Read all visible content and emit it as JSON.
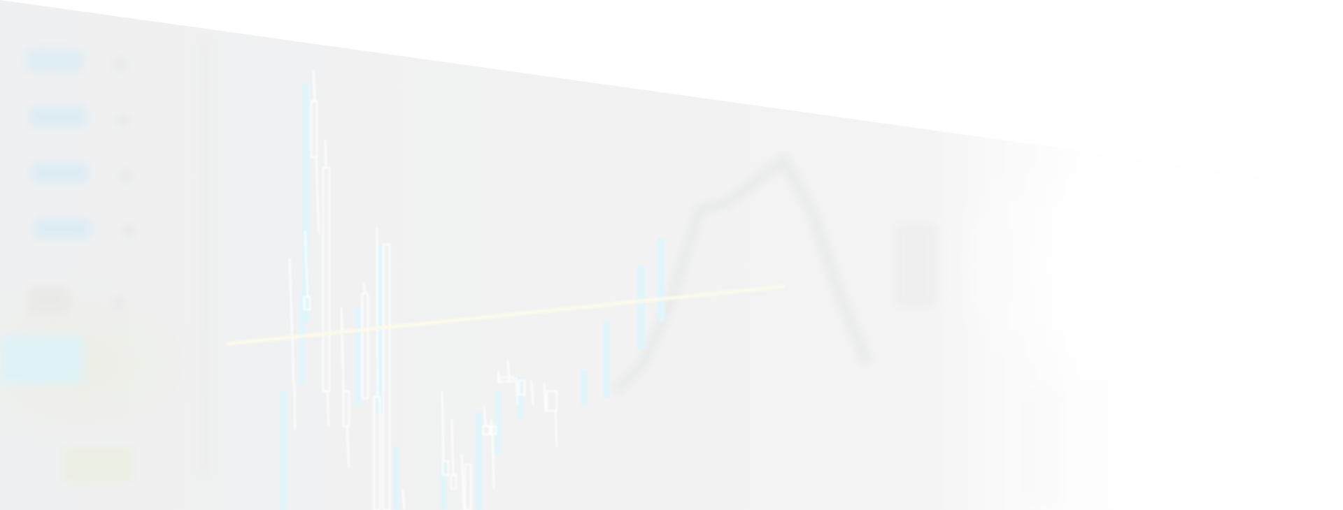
{
  "scene": {
    "description_tag": "faded-trading-chart-hero",
    "colors": {
      "background": "#ffffff",
      "panel": "#f2f2f2",
      "candle_outline": "#ffffff",
      "candle_fill_cyan": "#dff6fb",
      "trend_line": "#fdfbe8",
      "left_panel_blue": "#d8eef6"
    },
    "icons": [
      "candlestick-chart-graphic",
      "trend-line-graphic",
      "order-book-panel-graphic"
    ]
  }
}
